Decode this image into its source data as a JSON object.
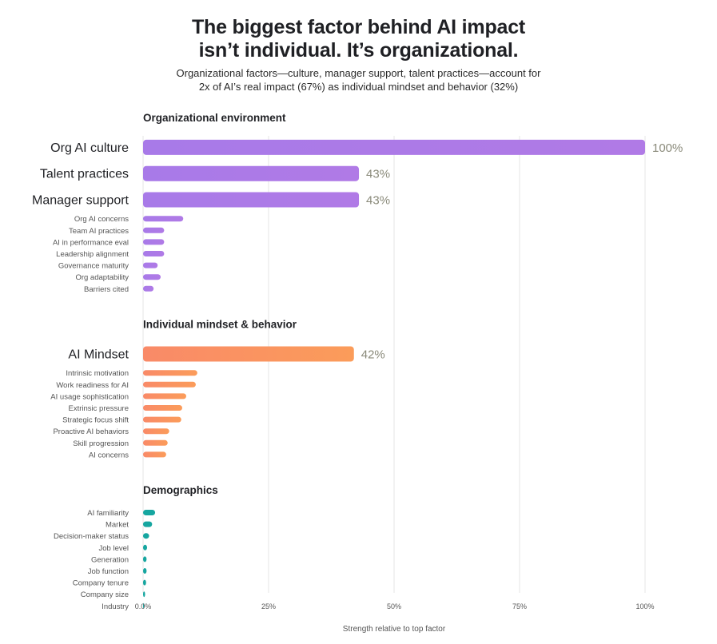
{
  "header": {
    "title_line1": "The biggest factor behind AI impact",
    "title_line2": "isn’t individual. It’s organizational.",
    "subtitle_line1": "Organizational factors—culture, manager support, talent practices—account for",
    "subtitle_line2": "2x of AI’s real impact (67%) as individual mindset and behavior (32%)"
  },
  "chart_data": {
    "type": "bar",
    "orientation": "horizontal",
    "xlabel": "Strength relative to top factor",
    "xlim": [
      0,
      100
    ],
    "xticks": [
      0,
      25,
      50,
      75,
      100
    ],
    "xtick_labels": [
      "0.0%",
      "25%",
      "50%",
      "75%",
      "100%"
    ],
    "grid": true,
    "groups": [
      {
        "name": "Organizational environment",
        "color": "#b07ae6",
        "color_start": "#a87ae8",
        "bars": [
          {
            "label": "Org AI culture",
            "value": 100,
            "value_label": "100%",
            "major": true
          },
          {
            "label": "Talent practices",
            "value": 43,
            "value_label": "43%",
            "major": true
          },
          {
            "label": "Manager support",
            "value": 43,
            "value_label": "43%",
            "major": true
          },
          {
            "label": "Org AI concerns",
            "value": 8
          },
          {
            "label": "Team AI practices",
            "value": 4.2
          },
          {
            "label": "AI in performance eval",
            "value": 4.2
          },
          {
            "label": "Leadership alignment",
            "value": 4.2
          },
          {
            "label": "Governance maturity",
            "value": 2.9
          },
          {
            "label": "Org adaptability",
            "value": 3.5
          },
          {
            "label": "Barriers cited",
            "value": 2.1
          }
        ]
      },
      {
        "name": "Individual mindset & behavior",
        "color": "#fb9c5a",
        "color_start": "#f98a68",
        "bars": [
          {
            "label": "AI Mindset",
            "value": 42,
            "value_label": "42%",
            "major": true
          },
          {
            "label": "Intrinsic motivation",
            "value": 10.8
          },
          {
            "label": "Work readiness for AI",
            "value": 10.5
          },
          {
            "label": "AI usage sophistication",
            "value": 8.6
          },
          {
            "label": "Extrinsic pressure",
            "value": 7.8
          },
          {
            "label": "Strategic focus shift",
            "value": 7.6
          },
          {
            "label": "Proactive AI behaviors",
            "value": 5.2
          },
          {
            "label": "Skill progression",
            "value": 4.9
          },
          {
            "label": "AI concerns",
            "value": 4.6
          }
        ]
      },
      {
        "name": "Demographics",
        "color": "#16a6a0",
        "color_start": "#16a6a0",
        "bars": [
          {
            "label": "AI familiarity",
            "value": 2.4
          },
          {
            "label": "Market",
            "value": 1.8
          },
          {
            "label": "Decision-maker status",
            "value": 1.2
          },
          {
            "label": "Job level",
            "value": 0.8
          },
          {
            "label": "Generation",
            "value": 0.7
          },
          {
            "label": "Job function",
            "value": 0.7
          },
          {
            "label": "Company tenure",
            "value": 0.6
          },
          {
            "label": "Company size",
            "value": 0.4
          },
          {
            "label": "Industry",
            "value": 0.2
          }
        ]
      }
    ]
  }
}
